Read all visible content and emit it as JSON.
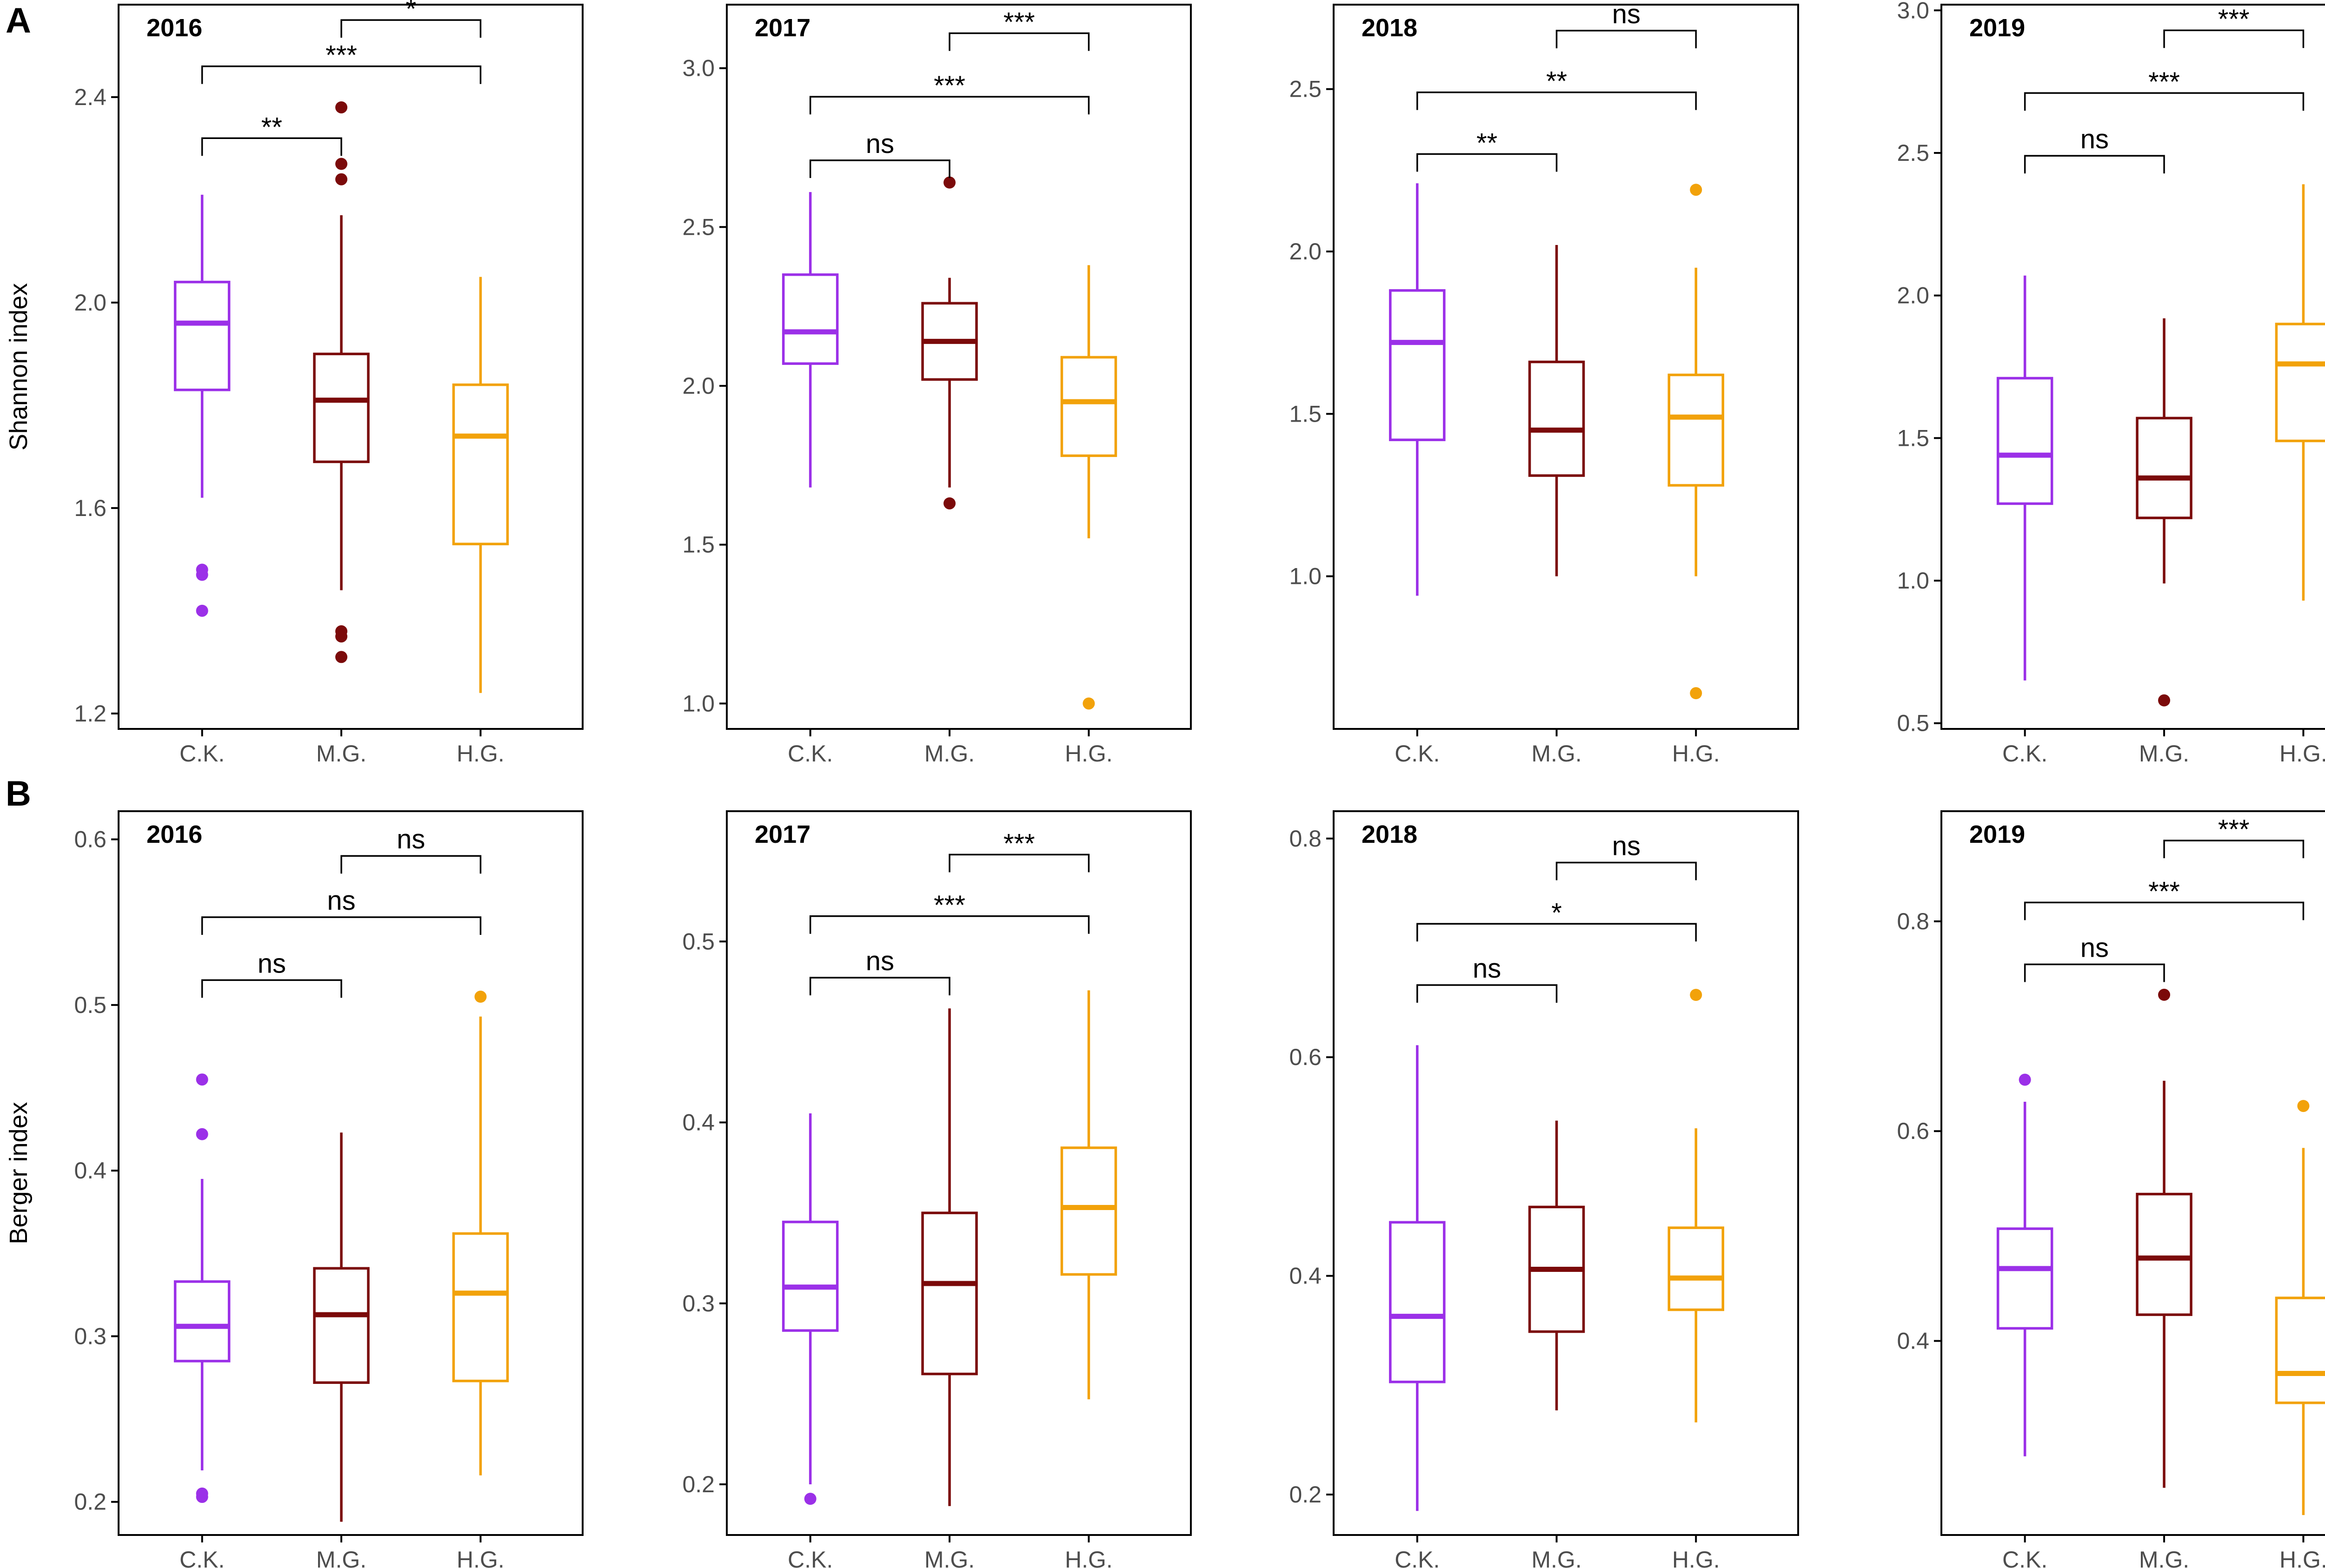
{
  "colors": {
    "C.K.": "#9b30e8",
    "M.G.": "#7b0a0a",
    "H.G.": "#f2a20a"
  },
  "chart_data": {
    "type": "boxplot",
    "groups": [
      "C.K.",
      "M.G.",
      "H.G."
    ],
    "rows": [
      {
        "letter": "A",
        "ylabel": "Shannon index",
        "panels": [
          {
            "year": "2016",
            "ylim": [
              1.17,
              2.58
            ],
            "yticks": [
              1.2,
              1.6,
              2.0,
              2.4
            ],
            "ytick_labels": [
              "1.2",
              "1.6",
              "2.0",
              "2.4"
            ],
            "boxes": [
              {
                "group": "C.K.",
                "lower_whisker": 1.62,
                "q1": 1.83,
                "median": 1.96,
                "q3": 2.04,
                "upper_whisker": 2.21,
                "outliers": [
                  1.48,
                  1.47,
                  1.4
                ]
              },
              {
                "group": "M.G.",
                "lower_whisker": 1.44,
                "q1": 1.69,
                "median": 1.81,
                "q3": 1.9,
                "upper_whisker": 2.17,
                "outliers": [
                  2.38,
                  2.27,
                  2.24,
                  1.36,
                  1.35,
                  1.31
                ]
              },
              {
                "group": "H.G.",
                "lower_whisker": 1.24,
                "q1": 1.53,
                "median": 1.74,
                "q3": 1.84,
                "upper_whisker": 2.05,
                "outliers": []
              }
            ],
            "comparisons": [
              {
                "from": "M.G.",
                "to": "H.G.",
                "y": 2.55,
                "label": "*"
              },
              {
                "from": "C.K.",
                "to": "H.G.",
                "y": 2.46,
                "label": "***"
              },
              {
                "from": "C.K.",
                "to": "M.G.",
                "y": 2.32,
                "label": "**"
              }
            ]
          },
          {
            "year": "2017",
            "ylim": [
              0.92,
              3.2
            ],
            "yticks": [
              1.0,
              1.5,
              2.0,
              2.5,
              3.0
            ],
            "ytick_labels": [
              "1.0",
              "1.5",
              "2.0",
              "2.5",
              "3.0"
            ],
            "boxes": [
              {
                "group": "C.K.",
                "lower_whisker": 1.68,
                "q1": 2.07,
                "median": 2.17,
                "q3": 2.35,
                "upper_whisker": 2.61,
                "outliers": []
              },
              {
                "group": "M.G.",
                "lower_whisker": 1.68,
                "q1": 2.02,
                "median": 2.14,
                "q3": 2.26,
                "upper_whisker": 2.34,
                "outliers": [
                  2.64,
                  1.63
                ]
              },
              {
                "group": "H.G.",
                "lower_whisker": 1.52,
                "q1": 1.78,
                "median": 1.95,
                "q3": 2.09,
                "upper_whisker": 2.38,
                "outliers": [
                  1.0
                ]
              }
            ],
            "comparisons": [
              {
                "from": "M.G.",
                "to": "H.G.",
                "y": 3.11,
                "label": "***"
              },
              {
                "from": "C.K.",
                "to": "H.G.",
                "y": 2.91,
                "label": "***"
              },
              {
                "from": "C.K.",
                "to": "M.G.",
                "y": 2.71,
                "label": "ns"
              }
            ]
          },
          {
            "year": "2018",
            "ylim": [
              0.53,
              2.76
            ],
            "yticks": [
              1.0,
              1.5,
              2.0,
              2.5
            ],
            "ytick_labels": [
              "1.0",
              "1.5",
              "2.0",
              "2.5"
            ],
            "boxes": [
              {
                "group": "C.K.",
                "lower_whisker": 0.94,
                "q1": 1.42,
                "median": 1.72,
                "q3": 1.88,
                "upper_whisker": 2.21,
                "outliers": []
              },
              {
                "group": "M.G.",
                "lower_whisker": 1.0,
                "q1": 1.31,
                "median": 1.45,
                "q3": 1.66,
                "upper_whisker": 2.02,
                "outliers": []
              },
              {
                "group": "H.G.",
                "lower_whisker": 1.0,
                "q1": 1.28,
                "median": 1.49,
                "q3": 1.62,
                "upper_whisker": 1.95,
                "outliers": [
                  2.19,
                  0.64
                ]
              }
            ],
            "comparisons": [
              {
                "from": "M.G.",
                "to": "H.G.",
                "y": 2.68,
                "label": "ns"
              },
              {
                "from": "C.K.",
                "to": "H.G.",
                "y": 2.49,
                "label": "**"
              },
              {
                "from": "C.K.",
                "to": "M.G.",
                "y": 2.3,
                "label": "**"
              }
            ]
          },
          {
            "year": "2019",
            "ylim": [
              0.48,
              3.02
            ],
            "yticks": [
              0.5,
              1.0,
              1.5,
              2.0,
              2.5,
              3.0
            ],
            "ytick_labels": [
              "0.5",
              "1.0",
              "1.5",
              "2.0",
              "2.5",
              "3.0"
            ],
            "boxes": [
              {
                "group": "C.K.",
                "lower_whisker": 0.65,
                "q1": 1.27,
                "median": 1.44,
                "q3": 1.71,
                "upper_whisker": 2.07,
                "outliers": []
              },
              {
                "group": "M.G.",
                "lower_whisker": 0.99,
                "q1": 1.22,
                "median": 1.36,
                "q3": 1.57,
                "upper_whisker": 1.92,
                "outliers": [
                  0.58
                ]
              },
              {
                "group": "H.G.",
                "lower_whisker": 0.93,
                "q1": 1.49,
                "median": 1.76,
                "q3": 1.9,
                "upper_whisker": 2.39,
                "outliers": []
              }
            ],
            "comparisons": [
              {
                "from": "M.G.",
                "to": "H.G.",
                "y": 2.93,
                "label": "***"
              },
              {
                "from": "C.K.",
                "to": "H.G.",
                "y": 2.71,
                "label": "***"
              },
              {
                "from": "C.K.",
                "to": "M.G.",
                "y": 2.49,
                "label": "ns"
              }
            ]
          }
        ]
      },
      {
        "letter": "B",
        "ylabel": "Berger index",
        "panels": [
          {
            "year": "2016",
            "ylim": [
              0.18,
              0.617
            ],
            "yticks": [
              0.2,
              0.3,
              0.4,
              0.5,
              0.6
            ],
            "ytick_labels": [
              "0.2",
              "0.3",
              "0.4",
              "0.5",
              "0.6"
            ],
            "boxes": [
              {
                "group": "C.K.",
                "lower_whisker": 0.219,
                "q1": 0.285,
                "median": 0.306,
                "q3": 0.333,
                "upper_whisker": 0.395,
                "outliers": [
                  0.455,
                  0.422,
                  0.205,
                  0.203
                ]
              },
              {
                "group": "M.G.",
                "lower_whisker": 0.188,
                "q1": 0.272,
                "median": 0.313,
                "q3": 0.341,
                "upper_whisker": 0.423,
                "outliers": []
              },
              {
                "group": "H.G.",
                "lower_whisker": 0.216,
                "q1": 0.273,
                "median": 0.326,
                "q3": 0.362,
                "upper_whisker": 0.493,
                "outliers": [
                  0.505
                ]
              }
            ],
            "comparisons": [
              {
                "from": "M.G.",
                "to": "H.G.",
                "y": 0.59,
                "label": "ns"
              },
              {
                "from": "C.K.",
                "to": "H.G.",
                "y": 0.553,
                "label": "ns"
              },
              {
                "from": "C.K.",
                "to": "M.G.",
                "y": 0.515,
                "label": "ns"
              }
            ]
          },
          {
            "year": "2017",
            "ylim": [
              0.172,
              0.572
            ],
            "yticks": [
              0.2,
              0.3,
              0.4,
              0.5
            ],
            "ytick_labels": [
              "0.2",
              "0.3",
              "0.4",
              "0.5"
            ],
            "boxes": [
              {
                "group": "C.K.",
                "lower_whisker": 0.2,
                "q1": 0.285,
                "median": 0.309,
                "q3": 0.345,
                "upper_whisker": 0.405,
                "outliers": [
                  0.192
                ]
              },
              {
                "group": "M.G.",
                "lower_whisker": 0.188,
                "q1": 0.261,
                "median": 0.311,
                "q3": 0.35,
                "upper_whisker": 0.463,
                "outliers": []
              },
              {
                "group": "H.G.",
                "lower_whisker": 0.247,
                "q1": 0.316,
                "median": 0.353,
                "q3": 0.386,
                "upper_whisker": 0.473,
                "outliers": []
              }
            ],
            "comparisons": [
              {
                "from": "M.G.",
                "to": "H.G.",
                "y": 0.548,
                "label": "***"
              },
              {
                "from": "C.K.",
                "to": "H.G.",
                "y": 0.514,
                "label": "***"
              },
              {
                "from": "C.K.",
                "to": "M.G.",
                "y": 0.48,
                "label": "ns"
              }
            ]
          },
          {
            "year": "2018",
            "ylim": [
              0.163,
              0.825
            ],
            "yticks": [
              0.2,
              0.4,
              0.6,
              0.8
            ],
            "ytick_labels": [
              "0.2",
              "0.4",
              "0.6",
              "0.8"
            ],
            "boxes": [
              {
                "group": "C.K.",
                "lower_whisker": 0.185,
                "q1": 0.303,
                "median": 0.363,
                "q3": 0.449,
                "upper_whisker": 0.611,
                "outliers": []
              },
              {
                "group": "M.G.",
                "lower_whisker": 0.277,
                "q1": 0.349,
                "median": 0.406,
                "q3": 0.463,
                "upper_whisker": 0.542,
                "outliers": []
              },
              {
                "group": "H.G.",
                "lower_whisker": 0.266,
                "q1": 0.369,
                "median": 0.398,
                "q3": 0.444,
                "upper_whisker": 0.535,
                "outliers": [
                  0.657
                ]
              }
            ],
            "comparisons": [
              {
                "from": "M.G.",
                "to": "H.G.",
                "y": 0.778,
                "label": "ns"
              },
              {
                "from": "C.K.",
                "to": "H.G.",
                "y": 0.722,
                "label": "*"
              },
              {
                "from": "C.K.",
                "to": "M.G.",
                "y": 0.666,
                "label": "ns"
              }
            ]
          },
          {
            "year": "2019",
            "ylim": [
              0.215,
              0.905
            ],
            "yticks": [
              0.4,
              0.6,
              0.8
            ],
            "ytick_labels": [
              "0.4",
              "0.6",
              "0.8"
            ],
            "boxes": [
              {
                "group": "C.K.",
                "lower_whisker": 0.29,
                "q1": 0.412,
                "median": 0.469,
                "q3": 0.507,
                "upper_whisker": 0.628,
                "outliers": [
                  0.649
                ]
              },
              {
                "group": "M.G.",
                "lower_whisker": 0.26,
                "q1": 0.425,
                "median": 0.479,
                "q3": 0.54,
                "upper_whisker": 0.648,
                "outliers": [
                  0.73
                ]
              },
              {
                "group": "H.G.",
                "lower_whisker": 0.234,
                "q1": 0.341,
                "median": 0.369,
                "q3": 0.441,
                "upper_whisker": 0.584,
                "outliers": [
                  0.624
                ]
              }
            ],
            "comparisons": [
              {
                "from": "M.G.",
                "to": "H.G.",
                "y": 0.877,
                "label": "***"
              },
              {
                "from": "C.K.",
                "to": "H.G.",
                "y": 0.818,
                "label": "***"
              },
              {
                "from": "C.K.",
                "to": "M.G.",
                "y": 0.759,
                "label": "ns"
              }
            ]
          }
        ]
      }
    ]
  }
}
